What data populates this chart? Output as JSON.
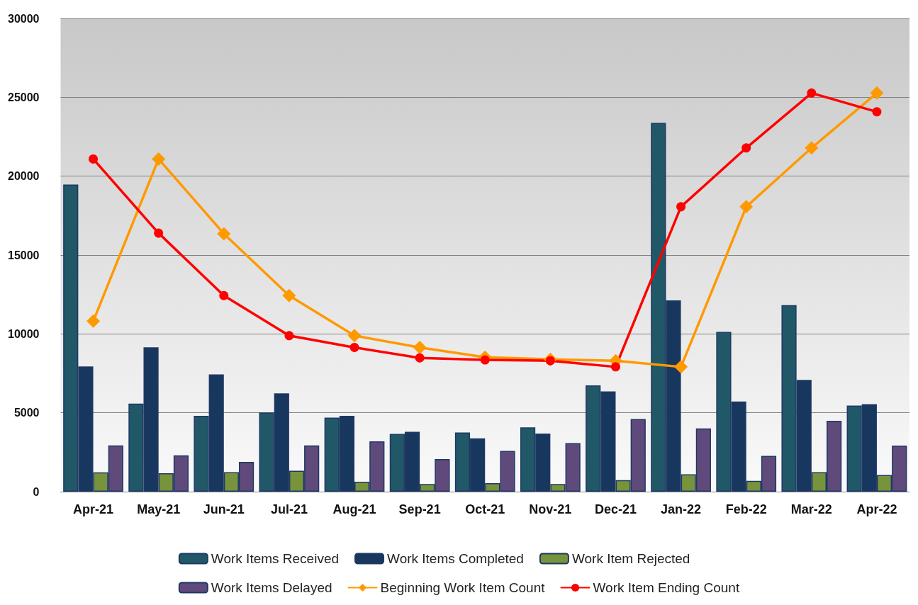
{
  "chart_data": {
    "type": "bar",
    "categories": [
      "Apr-21",
      "May-21",
      "Jun-21",
      "Jul-21",
      "Aug-21",
      "Sep-21",
      "Oct-21",
      "Nov-21",
      "Dec-21",
      "Jan-22",
      "Feb-22",
      "Mar-22",
      "Apr-22"
    ],
    "series": [
      {
        "name": "Work Items Received",
        "color": "#215868",
        "values": [
          19470,
          5580,
          4800,
          5020,
          4690,
          3660,
          3750,
          4070,
          6740,
          23380,
          10130,
          11820,
          5460
        ]
      },
      {
        "name": "Work Items Completed",
        "color": "#17375e",
        "values": [
          7940,
          9150,
          7430,
          6230,
          4800,
          3790,
          3380,
          3680,
          6360,
          12130,
          5720,
          7090,
          5550
        ]
      },
      {
        "name": "Work Item Rejected",
        "color": "#77933c",
        "values": [
          1220,
          1170,
          1240,
          1330,
          630,
          480,
          540,
          480,
          730,
          1100,
          680,
          1240,
          1050
        ]
      },
      {
        "name": "Work Items Delayed",
        "color": "#604a7b",
        "values": [
          2930,
          2300,
          1890,
          2930,
          3190,
          2070,
          2580,
          3080,
          4600,
          4010,
          2270,
          4490,
          2920
        ]
      },
      {
        "name": "Beginning Work Item Count",
        "type": "line",
        "marker": "diamond",
        "color": "#ff9900",
        "values": [
          10810,
          21090,
          16350,
          12430,
          9890,
          9140,
          8520,
          8390,
          8300,
          7910,
          18060,
          21790,
          25270
        ]
      },
      {
        "name": "Work Item Ending Count",
        "type": "line",
        "marker": "circle",
        "color": "#ff0000",
        "values": [
          21090,
          16390,
          12430,
          9890,
          9140,
          8480,
          8350,
          8300,
          7910,
          18060,
          21790,
          25270,
          24080
        ]
      }
    ],
    "ylim": [
      0,
      30000
    ],
    "yticks": [
      0,
      5000,
      10000,
      15000,
      20000,
      25000,
      30000
    ],
    "grid": "y",
    "legend": "bottom"
  }
}
